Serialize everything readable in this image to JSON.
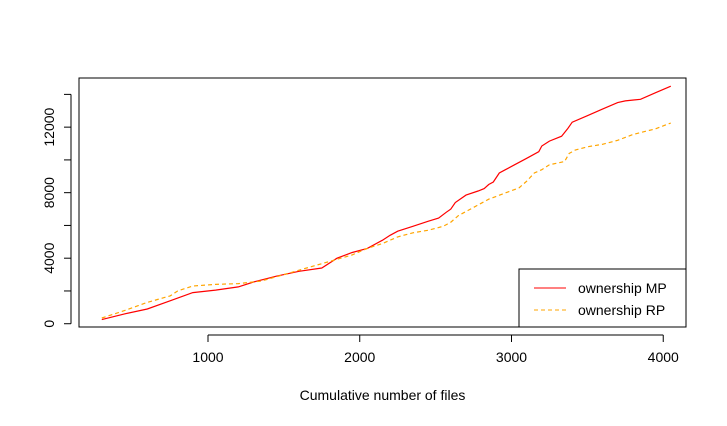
{
  "chart_data": {
    "type": "line",
    "title": "",
    "xlabel": "Cumulative number of files",
    "ylabel": "",
    "xlim": [
      150,
      4150
    ],
    "ylim": [
      -200,
      15000
    ],
    "x_ticks": [
      1000,
      2000,
      3000,
      4000
    ],
    "y_ticks": [
      0,
      4000,
      8000,
      12000
    ],
    "y_minor_ticks": [
      2000,
      6000,
      10000,
      14000
    ],
    "grid": false,
    "legend_position": "bottom-right",
    "series": [
      {
        "name": "ownership MP",
        "color": "#ff0000",
        "line_style": "solid",
        "x": [
          300,
          450,
          600,
          750,
          900,
          1050,
          1200,
          1300,
          1450,
          1600,
          1750,
          1850,
          1950,
          2050,
          2150,
          2200,
          2250,
          2350,
          2450,
          2520,
          2570,
          2600,
          2630,
          2700,
          2780,
          2820,
          2850,
          2880,
          2920,
          2960,
          3020,
          3100,
          3180,
          3200,
          3250,
          3330,
          3370,
          3400,
          3500,
          3600,
          3700,
          3750,
          3850,
          3950,
          4050
        ],
        "y": [
          250,
          600,
          900,
          1400,
          1900,
          2050,
          2250,
          2550,
          2900,
          3200,
          3400,
          4000,
          4350,
          4600,
          5100,
          5400,
          5650,
          5950,
          6250,
          6450,
          6800,
          7000,
          7400,
          7850,
          8100,
          8250,
          8500,
          8650,
          9200,
          9400,
          9700,
          10100,
          10500,
          10850,
          11150,
          11450,
          11900,
          12300,
          12700,
          13100,
          13500,
          13600,
          13700,
          14100,
          14500
        ]
      },
      {
        "name": "ownership RP",
        "color": "#ffa500",
        "line_style": "dashed",
        "x": [
          300,
          450,
          600,
          750,
          800,
          900,
          1050,
          1200,
          1350,
          1500,
          1650,
          1800,
          1950,
          2050,
          2150,
          2250,
          2350,
          2450,
          2550,
          2600,
          2650,
          2750,
          2850,
          2950,
          3050,
          3100,
          3150,
          3200,
          3250,
          3350,
          3380,
          3420,
          3500,
          3600,
          3700,
          3800,
          3950,
          4050
        ],
        "y": [
          350,
          800,
          1300,
          1700,
          2000,
          2300,
          2400,
          2450,
          2600,
          3000,
          3400,
          3800,
          4200,
          4600,
          4900,
          5300,
          5550,
          5700,
          5950,
          6200,
          6600,
          7100,
          7600,
          7950,
          8300,
          8700,
          9200,
          9400,
          9700,
          9900,
          10400,
          10600,
          10800,
          10950,
          11200,
          11550,
          11900,
          12250
        ]
      }
    ]
  }
}
